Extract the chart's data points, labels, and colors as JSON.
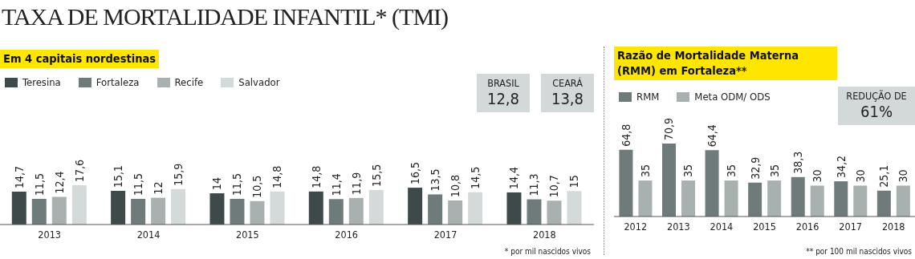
{
  "chart_data": [
    {
      "type": "bar",
      "title": "TAXA DE MORTALIDADE INFANTIL* (TMI)",
      "subtitle": "Em 4 capitais nordestinas",
      "categories": [
        "2013",
        "2014",
        "2015",
        "2016",
        "2017",
        "2018"
      ],
      "series": [
        {
          "name": "Teresina",
          "color": "#3e4949",
          "values": [
            14.7,
            15.1,
            14,
            14.8,
            16.5,
            14.4
          ],
          "value_labels": [
            "14,7",
            "15,1",
            "14",
            "14,8",
            "16,5",
            "14,4"
          ]
        },
        {
          "name": "Fortaleza",
          "color": "#6f7b7a",
          "values": [
            11.5,
            11.5,
            11.5,
            11.4,
            13.5,
            11.3
          ],
          "value_labels": [
            "11,5",
            "11,5",
            "11,5",
            "11,4",
            "13,5",
            "11,3"
          ]
        },
        {
          "name": "Recife",
          "color": "#a8b1b0",
          "values": [
            12.4,
            12,
            10.5,
            11.9,
            10.8,
            10.7
          ],
          "value_labels": [
            "12,4",
            "12",
            "10,5",
            "11,9",
            "10,8",
            "10,7"
          ]
        },
        {
          "name": "Salvador",
          "color": "#d4d9d9",
          "values": [
            17.6,
            15.9,
            14.8,
            15.5,
            14.5,
            15
          ],
          "value_labels": [
            "17,6",
            "15,9",
            "14,8",
            "15,5",
            "14,5",
            "15"
          ]
        }
      ],
      "legend": "top left",
      "annotations": [
        "BRASIL 12,8",
        "CEARÁ 13,8",
        "* por mil nascidos vivos"
      ]
    },
    {
      "type": "bar",
      "title": "Razão de Mortalidade Materna (RMM) em Fortaleza**",
      "categories": [
        "2012",
        "2013",
        "2014",
        "2015",
        "2016",
        "2017",
        "2018"
      ],
      "series": [
        {
          "name": "RMM",
          "color": "#6f7b7a",
          "values": [
            64.8,
            70.9,
            64.4,
            32.9,
            38.3,
            34.2,
            25.1
          ],
          "value_labels": [
            "64,8",
            "70,9",
            "64,4",
            "32,9",
            "38,3",
            "34,2",
            "25,1"
          ]
        },
        {
          "name": "Meta ODM/ ODS",
          "color": "#a8b1b0",
          "values": [
            35,
            35,
            35,
            35,
            30,
            30,
            30
          ],
          "value_labels": [
            "35",
            "35",
            "35",
            "35",
            "30",
            "30",
            "30"
          ]
        }
      ],
      "legend": "top left",
      "annotations": [
        "REDUÇÃO DE 61%",
        "** por 100 mil nascidos vivos"
      ]
    }
  ]
}
